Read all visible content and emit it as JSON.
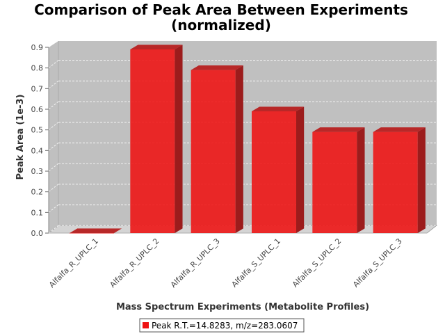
{
  "chart_data": {
    "type": "bar",
    "title_line1": "Comparison of Peak Area Between Experiments",
    "title_line2": "(normalized)",
    "xlabel": "Mass Spectrum Experiments (Metabolite Profiles)",
    "ylabel": "Peak Area (1e-3)",
    "categories": [
      "Alfalfa_R_UPLC_1",
      "Alfalfa_R_UPLC_2",
      "Alfalfa_R_UPLC_3",
      "Alfalfa_S_UPLC_1",
      "Alfalfa_S_UPLC_2",
      "Alfalfa_S_UPLC_3"
    ],
    "series": [
      {
        "name": "Peak R.T.=14.8283, m/z=283.0607",
        "color": "#ee1111",
        "values": [
          0.0,
          0.89,
          0.79,
          0.59,
          0.49,
          0.49
        ]
      }
    ],
    "ylim": [
      0.0,
      0.9
    ],
    "yticks": [
      "0.0",
      "0.1",
      "0.2",
      "0.3",
      "0.4",
      "0.5",
      "0.6",
      "0.7",
      "0.8",
      "0.9"
    ],
    "grid": true,
    "legend_position": "bottom",
    "plot_background": "#c0c0c0"
  }
}
